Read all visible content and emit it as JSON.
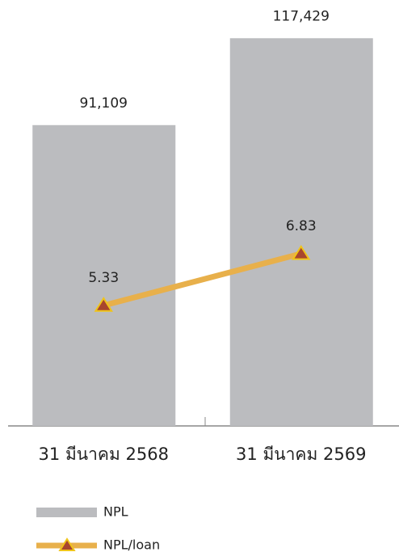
{
  "chart_data": {
    "type": "bar",
    "categories": [
      "31 มีนาคม 2568",
      "31 มีนาคม 2569"
    ],
    "ylim": [
      0,
      129000
    ],
    "y2lim": [
      1.84,
      14.18
    ],
    "series": [
      {
        "name": "NPL",
        "type": "bar",
        "color": "#bbbcbf",
        "values": [
          91109,
          117429
        ],
        "value_labels": [
          "91,109",
          "117,429"
        ]
      },
      {
        "name": "NPL/loan",
        "type": "line",
        "axis": "y2",
        "color": "#e8b04b",
        "marker_color": "#a8462e",
        "values": [
          5.33,
          6.83
        ]
      }
    ],
    "legend": "bottom-left"
  }
}
